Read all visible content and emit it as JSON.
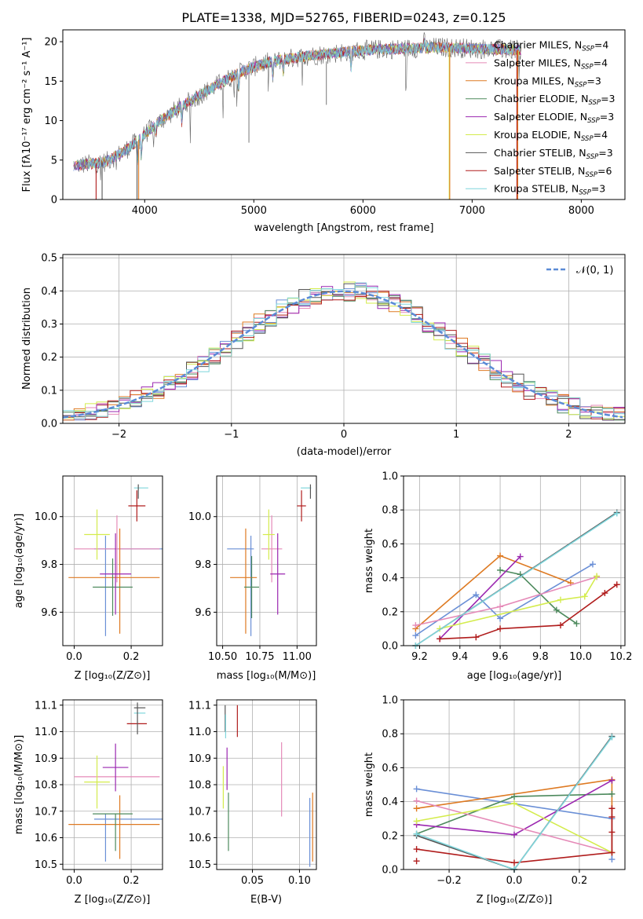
{
  "chart_data": [
    {
      "id": "spectrum",
      "type": "line",
      "title": "PLATE=1338, MJD=52765, FIBERID=0243, z=0.125",
      "xlabel": "wavelength [Angstrom, rest frame]",
      "ylabel": "Flux [fλ10⁻¹⁷ erg cm⁻² s⁻¹ A⁻¹]",
      "xlim": [
        3250,
        8400
      ],
      "ylim": [
        0,
        21.5
      ],
      "xticks": [
        4000,
        5000,
        6000,
        7000,
        8000
      ],
      "yticks": [
        0,
        5,
        10,
        15,
        20
      ],
      "grid": false,
      "legend": "upper right",
      "series": [
        {
          "name": "Chabrier MILES, N_SSP=4",
          "color": "#6a8fd6"
        },
        {
          "name": "Salpeter MILES, N_SSP=4",
          "color": "#e58ab8"
        },
        {
          "name": "Kroupa MILES, N_SSP=3",
          "color": "#de7a22"
        },
        {
          "name": "Chabrier ELODIE, N_SSP=3",
          "color": "#4d8a5d"
        },
        {
          "name": "Salpeter ELODIE, N_SSP=3",
          "color": "#9b27b0"
        },
        {
          "name": "Kroupa ELODIE, N_SSP=4",
          "color": "#d4ec4d"
        },
        {
          "name": "Chabrier STELIB, N_SSP=3",
          "color": "#555555"
        },
        {
          "name": "Salpeter STELIB, N_SSP=6",
          "color": "#b01c1c"
        },
        {
          "name": "Kroupa STELIB, N_SSP=3",
          "color": "#7fd6dc"
        }
      ],
      "continuum": [
        [
          3350,
          4.3
        ],
        [
          3500,
          4.5
        ],
        [
          3650,
          4.8
        ],
        [
          3800,
          6.0
        ],
        [
          3950,
          7.6
        ],
        [
          4100,
          9.5
        ],
        [
          4300,
          11.5
        ],
        [
          4500,
          13.2
        ],
        [
          4700,
          14.8
        ],
        [
          4900,
          16.3
        ],
        [
          5100,
          17.3
        ],
        [
          5300,
          17.8
        ],
        [
          5500,
          18.2
        ],
        [
          5700,
          18.5
        ],
        [
          5900,
          18.8
        ],
        [
          6100,
          19.0
        ],
        [
          6300,
          19.1
        ],
        [
          6500,
          19.2
        ],
        [
          6700,
          19.3
        ],
        [
          6900,
          19.2
        ],
        [
          7100,
          19.1
        ],
        [
          7300,
          19.0
        ],
        [
          7450,
          18.9
        ]
      ]
    },
    {
      "id": "residuals",
      "type": "line",
      "xlabel": "(data-model)/error",
      "ylabel": "Normed distribution",
      "xlim": [
        -2.5,
        2.5
      ],
      "ylim": [
        0,
        0.51
      ],
      "xticks": [
        -2,
        -1,
        0,
        1,
        2
      ],
      "yticks": [
        0.0,
        0.1,
        0.2,
        0.3,
        0.4,
        0.5
      ],
      "grid": true,
      "legend": "upper right",
      "reference_label": "𝒩(0, 1)",
      "reference_color": "#5b8bd6"
    },
    {
      "id": "z-age",
      "type": "scatter",
      "xlabel": "Z [log₁₀(Z/Z⊙)]",
      "ylabel": "age  [log₁₀(age/yr)]",
      "xlim": [
        -0.04,
        0.31
      ],
      "ylim": [
        9.46,
        10.17
      ],
      "xticks": [
        0.0,
        0.2
      ],
      "yticks": [
        9.6,
        9.8,
        10.0
      ],
      "grid": true,
      "points": [
        {
          "c": "#6a8fd6",
          "x": 0.19,
          "xe": 0.12,
          "y": 9.865,
          "ye": 0.0
        },
        {
          "c": "#6a8fd6",
          "x": 0.11,
          "xe": 0.0,
          "y": 9.71,
          "ye": 0.21
        },
        {
          "c": "#e58ab8",
          "x": 0.15,
          "xe": 0.15,
          "y": 9.865,
          "ye": 0.14
        },
        {
          "c": "#de7a22",
          "x": 0.14,
          "xe": 0.16,
          "y": 9.745,
          "ye": 0.0
        },
        {
          "c": "#de7a22",
          "x": 0.16,
          "xe": 0.0,
          "y": 9.73,
          "ye": 0.22
        },
        {
          "c": "#4d8a5d",
          "x": 0.135,
          "xe": 0.07,
          "y": 9.705,
          "ye": 0.12
        },
        {
          "c": "#9b27b0",
          "x": 0.145,
          "xe": 0.055,
          "y": 9.76,
          "ye": 0.17
        },
        {
          "c": "#d4ec4d",
          "x": 0.08,
          "xe": 0.045,
          "y": 9.925,
          "ye": 0.105
        },
        {
          "c": "#b01c1c",
          "x": 0.22,
          "xe": 0.03,
          "y": 10.045,
          "ye": 0.065
        },
        {
          "c": "#7fd6dc",
          "x": 0.235,
          "xe": 0.025,
          "y": 10.12,
          "ye": 0.0
        },
        {
          "c": "#555555",
          "x": 0.225,
          "xe": 0.0,
          "y": 10.105,
          "ye": 0.03
        }
      ]
    },
    {
      "id": "mass-age",
      "type": "scatter",
      "xlabel": "mass [log₁₀(M/M⊙)]",
      "xlim": [
        10.46,
        11.13
      ],
      "ylim": [
        9.46,
        10.17
      ],
      "xticks": [
        10.5,
        10.75,
        11.0
      ],
      "xticklabels": [
        "10.50",
        "10.75",
        "11.00"
      ],
      "yticks": [
        9.6,
        9.8,
        10.0
      ],
      "grid": true,
      "points": [
        {
          "c": "#6a8fd6",
          "x": 10.62,
          "xe": 0.09,
          "y": 9.865,
          "ye": 0.0
        },
        {
          "c": "#6a8fd6",
          "x": 10.69,
          "xe": 0.0,
          "y": 9.71,
          "ye": 0.21
        },
        {
          "c": "#e58ab8",
          "x": 10.83,
          "xe": 0.07,
          "y": 9.865,
          "ye": 0.14
        },
        {
          "c": "#de7a22",
          "x": 10.64,
          "xe": 0.09,
          "y": 9.745,
          "ye": 0.0
        },
        {
          "c": "#de7a22",
          "x": 10.655,
          "xe": 0.0,
          "y": 9.73,
          "ye": 0.22
        },
        {
          "c": "#4d8a5d",
          "x": 10.695,
          "xe": 0.05,
          "y": 9.705,
          "ye": 0.13
        },
        {
          "c": "#9b27b0",
          "x": 10.87,
          "xe": 0.05,
          "y": 9.76,
          "ye": 0.17
        },
        {
          "c": "#d4ec4d",
          "x": 10.81,
          "xe": 0.04,
          "y": 9.925,
          "ye": 0.105
        },
        {
          "c": "#b01c1c",
          "x": 11.03,
          "xe": 0.03,
          "y": 10.045,
          "ye": 0.065
        },
        {
          "c": "#7fd6dc",
          "x": 11.06,
          "xe": 0.035,
          "y": 10.12,
          "ye": 0.0
        },
        {
          "c": "#555555",
          "x": 11.09,
          "xe": 0.0,
          "y": 10.105,
          "ye": 0.03
        }
      ]
    },
    {
      "id": "age-weight",
      "type": "line",
      "xlabel": "age  [log₁₀(age/yr)]",
      "ylabel": "mass weight",
      "xlim": [
        9.12,
        10.22
      ],
      "ylim": [
        0,
        1.0
      ],
      "xticks": [
        9.2,
        9.4,
        9.6,
        9.8,
        10.0,
        10.2
      ],
      "yticks": [
        0.0,
        0.2,
        0.4,
        0.6,
        0.8,
        1.0
      ],
      "grid": true,
      "series": [
        {
          "c": "#6a8fd6",
          "x": [
            9.18,
            9.48,
            9.6,
            10.06
          ],
          "y": [
            0.06,
            0.3,
            0.16,
            0.48
          ]
        },
        {
          "c": "#de7a22",
          "x": [
            9.18,
            9.6,
            9.95
          ],
          "y": [
            0.1,
            0.53,
            0.37
          ]
        },
        {
          "c": "#4d8a5d",
          "x": [
            9.6,
            9.7,
            9.88,
            9.98
          ],
          "y": [
            0.445,
            0.42,
            0.21,
            0.13
          ]
        },
        {
          "c": "#9b27b0",
          "x": [
            9.3,
            9.7
          ],
          "y": [
            0.04,
            0.525
          ]
        },
        {
          "c": "#e58ab8",
          "x": [
            9.18,
            9.6,
            10.08
          ],
          "y": [
            0.12,
            0.23,
            0.405
          ]
        },
        {
          "c": "#d4ec4d",
          "x": [
            9.3,
            9.9,
            10.02,
            10.08
          ],
          "y": [
            0.1,
            0.27,
            0.29,
            0.41
          ]
        },
        {
          "c": "#b01c1c",
          "x": [
            9.3,
            9.48,
            9.6,
            9.9,
            10.12,
            10.18
          ],
          "y": [
            0.04,
            0.05,
            0.1,
            0.12,
            0.31,
            0.36
          ]
        },
        {
          "c": "#555555",
          "x": [
            9.18,
            10.18
          ],
          "y": [
            0.0,
            0.785
          ]
        },
        {
          "c": "#7fd6dc",
          "x": [
            9.18,
            10.18
          ],
          "y": [
            0.0,
            0.78
          ]
        }
      ]
    },
    {
      "id": "z-mass",
      "type": "scatter",
      "xlabel": "Z [log₁₀(Z/Z⊙)]",
      "ylabel": "mass [log₁₀(M/M⊙)]",
      "xlim": [
        -0.04,
        0.31
      ],
      "ylim": [
        10.48,
        11.12
      ],
      "xticks": [
        0.0,
        0.2
      ],
      "yticks": [
        10.5,
        10.6,
        10.7,
        10.8,
        10.9,
        11.0,
        11.1
      ],
      "grid": true,
      "points": [
        {
          "c": "#6a8fd6",
          "x": 0.19,
          "xe": 0.12,
          "y": 10.67,
          "ye": 0.0
        },
        {
          "c": "#6a8fd6",
          "x": 0.11,
          "xe": 0.0,
          "y": 10.6,
          "ye": 0.09
        },
        {
          "c": "#e58ab8",
          "x": 0.15,
          "xe": 0.15,
          "y": 10.83,
          "ye": 0.0
        },
        {
          "c": "#de7a22",
          "x": 0.14,
          "xe": 0.16,
          "y": 10.65,
          "ye": 0.0
        },
        {
          "c": "#de7a22",
          "x": 0.16,
          "xe": 0.0,
          "y": 10.64,
          "ye": 0.12
        },
        {
          "c": "#4d8a5d",
          "x": 0.135,
          "xe": 0.07,
          "y": 10.69,
          "ye": 0.0
        },
        {
          "c": "#4d8a5d",
          "x": 0.145,
          "xe": 0.0,
          "y": 10.62,
          "ye": 0.07
        },
        {
          "c": "#9b27b0",
          "x": 0.145,
          "xe": 0.045,
          "y": 10.865,
          "ye": 0.09
        },
        {
          "c": "#d4ec4d",
          "x": 0.08,
          "xe": 0.045,
          "y": 10.81,
          "ye": 0.1
        },
        {
          "c": "#b01c1c",
          "x": 0.22,
          "xe": 0.035,
          "y": 11.03,
          "ye": 0.0
        },
        {
          "c": "#7fd6dc",
          "x": 0.23,
          "xe": 0.02,
          "y": 11.07,
          "ye": 0.0
        },
        {
          "c": "#555555",
          "x": 0.23,
          "xe": 0.02,
          "y": 11.09,
          "ye": 0.0
        },
        {
          "c": "#555555",
          "x": 0.222,
          "xe": 0.0,
          "y": 11.05,
          "ye": 0.06
        }
      ]
    },
    {
      "id": "ebv-mass",
      "type": "scatter",
      "xlabel": "E(B-V)",
      "xlim": [
        0.012,
        0.118
      ],
      "ylim": [
        10.48,
        11.12
      ],
      "xticks": [
        0.05,
        0.1
      ],
      "xticklabels": [
        "0.05",
        "0.10"
      ],
      "yticks": [
        10.5,
        10.6,
        10.7,
        10.8,
        10.9,
        11.0,
        11.1
      ],
      "grid": true,
      "points": [
        {
          "c": "#555555",
          "x": 0.021,
          "y": 11.05,
          "ye": 0.05
        },
        {
          "c": "#7fd6dc",
          "x": 0.0215,
          "y": 11.02,
          "ye": 0.045
        },
        {
          "c": "#b01c1c",
          "x": 0.034,
          "y": 11.04,
          "ye": 0.06
        },
        {
          "c": "#9b27b0",
          "x": 0.023,
          "y": 10.86,
          "ye": 0.08
        },
        {
          "c": "#d4ec4d",
          "x": 0.019,
          "y": 10.79,
          "ye": 0.08
        },
        {
          "c": "#4d8a5d",
          "x": 0.0245,
          "y": 10.66,
          "ye": 0.11
        },
        {
          "c": "#e58ab8",
          "x": 0.081,
          "y": 10.82,
          "ye": 0.14
        },
        {
          "c": "#6a8fd6",
          "x": 0.111,
          "y": 10.62,
          "ye": 0.13
        },
        {
          "c": "#de7a22",
          "x": 0.114,
          "y": 10.64,
          "ye": 0.13
        }
      ]
    },
    {
      "id": "z-weight",
      "type": "line",
      "xlabel": "Z [log₁₀(Z/Z⊙)]",
      "ylabel": "mass weight",
      "xlim": [
        -0.34,
        0.34
      ],
      "ylim": [
        0,
        1.0
      ],
      "xticks": [
        -0.2,
        0.0,
        0.2
      ],
      "yticks": [
        0.0,
        0.2,
        0.4,
        0.6,
        0.8,
        1.0
      ],
      "grid": true,
      "series": [
        {
          "c": "#6a8fd6",
          "x": [
            -0.3,
            0.3,
            0.3
          ],
          "y": [
            0.475,
            0.3,
            0.06
          ]
        },
        {
          "c": "#de7a22",
          "x": [
            -0.3,
            0.3,
            0.3
          ],
          "y": [
            0.36,
            0.53,
            0.1
          ]
        },
        {
          "c": "#4d8a5d",
          "x": [
            -0.3,
            0.0,
            0.3
          ],
          "y": [
            0.21,
            0.43,
            0.445
          ]
        },
        {
          "c": "#9b27b0",
          "x": [
            -0.3,
            0.0,
            0.3
          ],
          "y": [
            0.265,
            0.205,
            0.525
          ]
        },
        {
          "c": "#e58ab8",
          "x": [
            -0.3,
            0.3
          ],
          "y": [
            0.405,
            0.1
          ]
        },
        {
          "c": "#d4ec4d",
          "x": [
            -0.3,
            0.0,
            0.3
          ],
          "y": [
            0.285,
            0.39,
            0.1
          ]
        },
        {
          "c": "#b01c1c",
          "x": [
            -0.3,
            0.0,
            0.3,
            0.3,
            0.3,
            0.3
          ],
          "y": [
            0.12,
            0.04,
            0.1,
            0.36,
            0.31,
            0.22
          ]
        },
        {
          "c": "#b01c1c",
          "x": [
            -0.3
          ],
          "y": [
            0.05
          ]
        },
        {
          "c": "#555555",
          "x": [
            -0.3,
            0.0,
            0.3
          ],
          "y": [
            0.2,
            0.0,
            0.785
          ]
        },
        {
          "c": "#7fd6dc",
          "x": [
            -0.3,
            0.0,
            0.3
          ],
          "y": [
            0.21,
            0.0,
            0.78
          ]
        }
      ]
    }
  ]
}
